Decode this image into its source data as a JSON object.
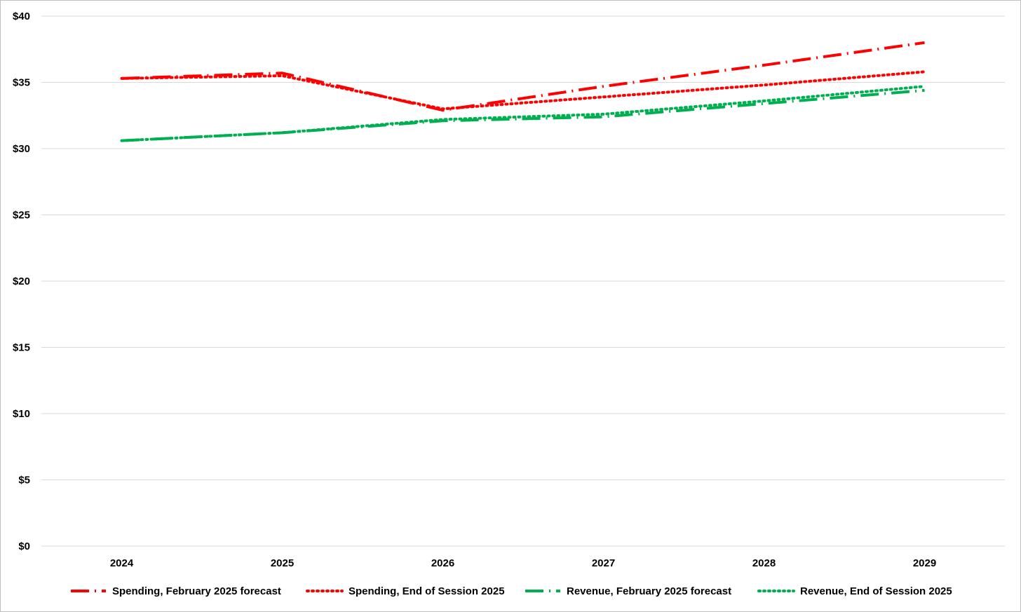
{
  "chart_data": {
    "type": "line",
    "title": "",
    "xlabel": "",
    "ylabel": "",
    "x": [
      "2024",
      "2025",
      "2026",
      "2027",
      "2028",
      "2029"
    ],
    "ylim": [
      0,
      40
    ],
    "y_ticks": [
      "$0",
      "$5",
      "$10",
      "$15",
      "$20",
      "$25",
      "$30",
      "$35",
      "$40"
    ],
    "y_tick_values": [
      0,
      5,
      10,
      15,
      20,
      25,
      30,
      35,
      40
    ],
    "grid": "horizontal",
    "legend_position": "bottom",
    "series": [
      {
        "name": "Spending, February 2025 forecast",
        "color": "#ff0000",
        "style": "long-dash-dot",
        "values": [
          35.3,
          35.7,
          32.9,
          34.7,
          36.3,
          38.0
        ]
      },
      {
        "name": "Spending, End of Session 2025",
        "color": "#ff0000",
        "style": "dotted",
        "values": [
          35.3,
          35.5,
          33.0,
          33.9,
          34.8,
          35.8
        ]
      },
      {
        "name": "Revenue, February 2025 forecast",
        "color": "#00b050",
        "style": "long-dash-dot",
        "values": [
          30.6,
          31.2,
          32.1,
          32.4,
          33.4,
          34.4
        ]
      },
      {
        "name": "Revenue, End of Session 2025",
        "color": "#00b050",
        "style": "dotted",
        "values": [
          30.6,
          31.2,
          32.2,
          32.6,
          33.6,
          34.7
        ]
      }
    ]
  }
}
